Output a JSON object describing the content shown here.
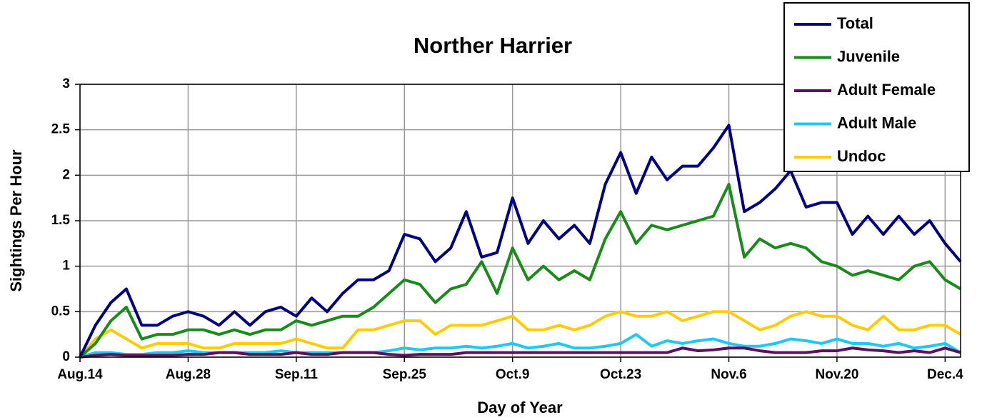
{
  "chart_data": {
    "type": "line",
    "title": "Norther Harrier",
    "xlabel": "Day of Year",
    "ylabel": "Sightings Per Hour",
    "grid": true,
    "legend": "upper-right",
    "xlim": [
      226,
      340
    ],
    "ylim": [
      0,
      3
    ],
    "yticks": [
      0,
      0.5,
      1,
      1.5,
      2,
      2.5,
      3
    ],
    "xticks": [
      {
        "value": 226,
        "label": "Aug.14"
      },
      {
        "value": 240,
        "label": "Aug.28"
      },
      {
        "value": 254,
        "label": "Sep.11"
      },
      {
        "value": 268,
        "label": "Sep.25"
      },
      {
        "value": 282,
        "label": "Oct.9"
      },
      {
        "value": 296,
        "label": "Oct.23"
      },
      {
        "value": 310,
        "label": "Nov.6"
      },
      {
        "value": 324,
        "label": "Nov.20"
      },
      {
        "value": 338,
        "label": "Dec.4"
      }
    ],
    "x": [
      226,
      228,
      230,
      232,
      234,
      236,
      238,
      240,
      242,
      244,
      246,
      248,
      250,
      252,
      254,
      256,
      258,
      260,
      262,
      264,
      266,
      268,
      270,
      272,
      274,
      276,
      278,
      280,
      282,
      284,
      286,
      288,
      290,
      292,
      294,
      296,
      298,
      300,
      302,
      304,
      306,
      308,
      310,
      312,
      314,
      316,
      318,
      320,
      322,
      324,
      326,
      328,
      330,
      332,
      334,
      336,
      338,
      340
    ],
    "series": [
      {
        "name": "Total",
        "color": "#000080",
        "values": [
          0,
          0.35,
          0.6,
          0.75,
          0.35,
          0.35,
          0.45,
          0.5,
          0.45,
          0.35,
          0.5,
          0.35,
          0.5,
          0.55,
          0.45,
          0.65,
          0.5,
          0.7,
          0.85,
          0.85,
          0.95,
          1.35,
          1.3,
          1.05,
          1.2,
          1.6,
          1.1,
          1.15,
          1.75,
          1.25,
          1.5,
          1.3,
          1.45,
          1.25,
          1.9,
          2.25,
          1.8,
          2.2,
          1.95,
          2.1,
          2.1,
          2.3,
          2.55,
          1.6,
          1.7,
          1.85,
          2.05,
          1.65,
          1.7,
          1.7,
          1.35,
          1.55,
          1.35,
          1.55,
          1.35,
          1.5,
          1.25,
          1.05
        ]
      },
      {
        "name": "Juvenile",
        "color": "#1a8a1a",
        "values": [
          0,
          0.15,
          0.4,
          0.55,
          0.2,
          0.25,
          0.25,
          0.3,
          0.3,
          0.25,
          0.3,
          0.25,
          0.3,
          0.3,
          0.4,
          0.35,
          0.4,
          0.45,
          0.45,
          0.55,
          0.7,
          0.85,
          0.8,
          0.6,
          0.75,
          0.8,
          1.05,
          0.7,
          1.2,
          0.85,
          1.0,
          0.85,
          0.95,
          0.85,
          1.3,
          1.6,
          1.25,
          1.45,
          1.4,
          1.45,
          1.5,
          1.55,
          1.9,
          1.1,
          1.3,
          1.2,
          1.25,
          1.2,
          1.05,
          1.0,
          0.9,
          0.95,
          0.9,
          0.85,
          1.0,
          1.05,
          0.85,
          0.75
        ]
      },
      {
        "name": "Adult Female",
        "color": "#5e1060",
        "values": [
          0,
          0.02,
          0.03,
          0.02,
          0.02,
          0.02,
          0.02,
          0.03,
          0.03,
          0.05,
          0.05,
          0.03,
          0.03,
          0.03,
          0.05,
          0.03,
          0.03,
          0.05,
          0.05,
          0.05,
          0.03,
          0.02,
          0.03,
          0.03,
          0.03,
          0.05,
          0.05,
          0.05,
          0.05,
          0.05,
          0.05,
          0.05,
          0.05,
          0.05,
          0.05,
          0.05,
          0.05,
          0.05,
          0.05,
          0.1,
          0.07,
          0.08,
          0.1,
          0.1,
          0.07,
          0.05,
          0.05,
          0.05,
          0.07,
          0.07,
          0.1,
          0.08,
          0.07,
          0.05,
          0.07,
          0.05,
          0.1,
          0.05
        ]
      },
      {
        "name": "Adult Male",
        "color": "#1ec8f2",
        "values": [
          0,
          0.05,
          0.05,
          0.03,
          0.03,
          0.05,
          0.05,
          0.07,
          0.05,
          0.05,
          0.05,
          0.05,
          0.05,
          0.07,
          0.05,
          0.05,
          0.05,
          0.05,
          0.05,
          0.05,
          0.07,
          0.1,
          0.08,
          0.1,
          0.1,
          0.12,
          0.1,
          0.12,
          0.15,
          0.1,
          0.12,
          0.15,
          0.1,
          0.1,
          0.12,
          0.15,
          0.25,
          0.12,
          0.18,
          0.15,
          0.18,
          0.2,
          0.15,
          0.12,
          0.12,
          0.15,
          0.2,
          0.18,
          0.15,
          0.2,
          0.15,
          0.15,
          0.12,
          0.15,
          0.1,
          0.12,
          0.15,
          0.05
        ]
      },
      {
        "name": "Undoc",
        "color": "#ffcc00",
        "values": [
          0,
          0.2,
          0.3,
          0.2,
          0.1,
          0.15,
          0.15,
          0.15,
          0.1,
          0.1,
          0.15,
          0.15,
          0.15,
          0.15,
          0.2,
          0.15,
          0.1,
          0.1,
          0.3,
          0.3,
          0.35,
          0.4,
          0.4,
          0.25,
          0.35,
          0.35,
          0.35,
          0.4,
          0.45,
          0.3,
          0.3,
          0.35,
          0.3,
          0.35,
          0.45,
          0.5,
          0.45,
          0.45,
          0.5,
          0.4,
          0.45,
          0.5,
          0.5,
          0.4,
          0.3,
          0.35,
          0.45,
          0.5,
          0.45,
          0.45,
          0.35,
          0.3,
          0.45,
          0.3,
          0.3,
          0.35,
          0.35,
          0.25
        ]
      }
    ]
  }
}
